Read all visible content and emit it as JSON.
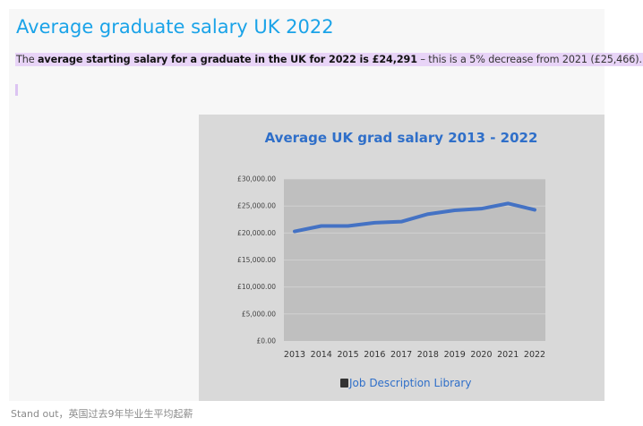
{
  "page": {
    "title": "Average graduate salary UK 2022",
    "intro_lead": "The ",
    "intro_bold": "average starting salary for a graduate in the UK for 2022 is £24,291",
    "intro_tail": " – this is a 5% decrease from 2021 (£25,466).",
    "caption": "Stand out，英国过去9年毕业生平均起薪"
  },
  "chart_data": {
    "type": "line",
    "title": "Average UK grad salary 2013 - 2022",
    "x": [
      "2013",
      "2014",
      "2015",
      "2016",
      "2017",
      "2018",
      "2019",
      "2020",
      "2021",
      "2022"
    ],
    "series": [
      {
        "values": [
          20300,
          21300,
          21300,
          21900,
          22100,
          23500,
          24200,
          24500,
          25466,
          24291
        ]
      }
    ],
    "yticks": [
      "£0.00",
      "£5,000.00",
      "£10,000.00",
      "£15,000.00",
      "£20,000.00",
      "£25,000.00",
      "£30,000.00"
    ],
    "ylim": [
      0,
      30000
    ],
    "grid": true,
    "legend": "none",
    "colors": {
      "line": "#4472c4",
      "plot_bg": "#bfbfbf",
      "grid": "#d4d4d4"
    },
    "watermark": "Job Description Library",
    "watermark_icon": "book-icon"
  }
}
